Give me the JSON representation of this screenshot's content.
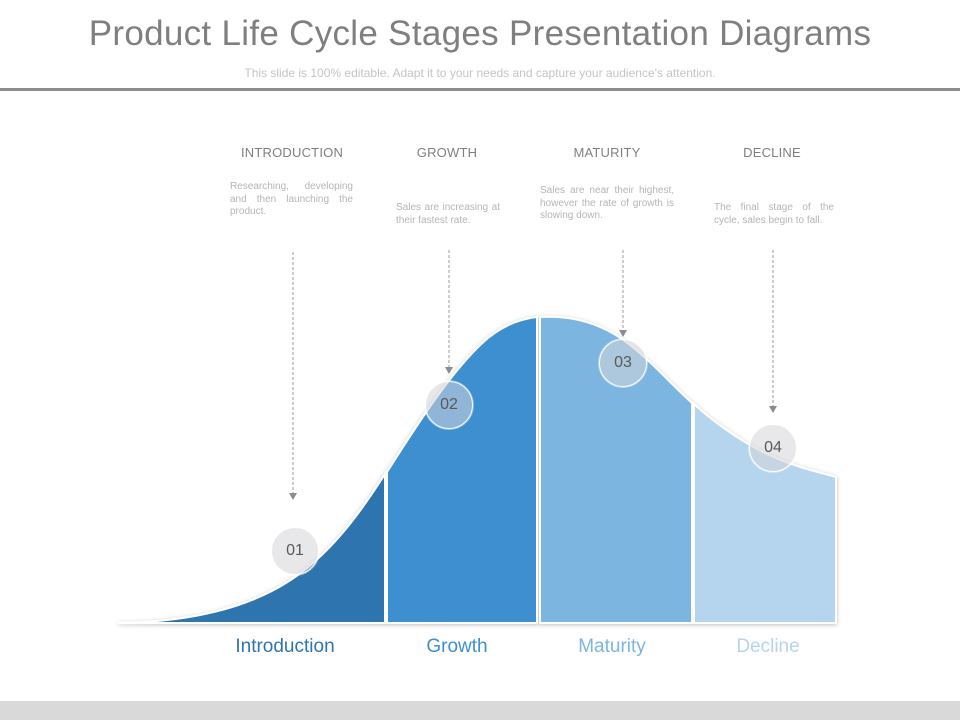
{
  "header": {
    "title": "Product Life Cycle Stages Presentation Diagrams",
    "subtitle": "This slide is 100% editable. Adapt it to your needs and capture your audience's attention."
  },
  "stages": [
    {
      "number": "01",
      "heading": "INTRODUCTION",
      "description": "Researching, developing and then launching the product.",
      "label": "Introduction",
      "color": "#2e75b0",
      "label_color": "#2e75b0"
    },
    {
      "number": "02",
      "heading": "GROWTH",
      "description": "Sales are increasing at their fastest rate.",
      "label": "Growth",
      "color": "#3d8fd0",
      "label_color": "#3d8fd0"
    },
    {
      "number": "03",
      "heading": "MATURITY",
      "description": "Sales are near their highest, however the rate of growth is slowing down.",
      "label": "Maturity",
      "color": "#7bb5e0",
      "label_color": "#7bb5e0"
    },
    {
      "number": "04",
      "heading": "DECLINE",
      "description": "The final stage of the cycle, sales begin to fall.",
      "label": "Decline",
      "color": "#b5d4ee",
      "label_color": "#b5d4ee"
    }
  ]
}
